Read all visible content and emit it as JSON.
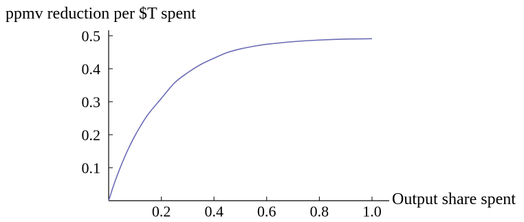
{
  "chart_data": {
    "type": "line",
    "title": "",
    "xlabel": "Output share spent",
    "ylabel": "ppmv reduction per $T spent",
    "xlim": [
      0,
      1.0
    ],
    "ylim": [
      0,
      0.5
    ],
    "x_ticks": [
      "0.2",
      "0.4",
      "0.6",
      "0.8",
      "1.0"
    ],
    "y_ticks": [
      "0.1",
      "0.2",
      "0.3",
      "0.4",
      "0.5"
    ],
    "grid": false,
    "legend": "none",
    "line_color": "#6b6bb6",
    "series": [
      {
        "x": [
          0.0,
          0.02,
          0.04,
          0.06,
          0.08,
          0.1,
          0.12,
          0.15,
          0.2,
          0.25,
          0.3,
          0.35,
          0.4,
          0.45,
          0.5,
          0.55,
          0.6,
          0.7,
          0.8,
          0.9,
          1.0
        ],
        "values": [
          0.0,
          0.049,
          0.092,
          0.131,
          0.166,
          0.197,
          0.225,
          0.262,
          0.31,
          0.357,
          0.388,
          0.413,
          0.432,
          0.449,
          0.46,
          0.468,
          0.474,
          0.482,
          0.487,
          0.49,
          0.491
        ]
      }
    ]
  }
}
